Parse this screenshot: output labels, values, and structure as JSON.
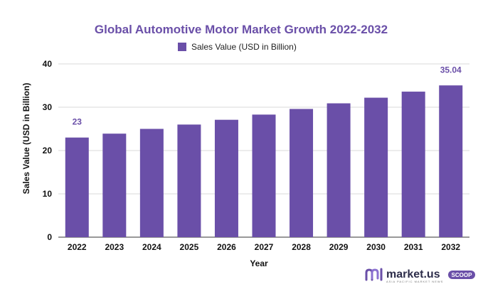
{
  "colors": {
    "bar": "#6a4fa8",
    "title": "#6a4fa8",
    "grid": "#d9d9d9",
    "text": "#111111",
    "scoop_badge": "#6a4fa8"
  },
  "logo": {
    "brand": "market.us",
    "tagline": "ASIA PACIFIC MARKET NEWS",
    "badge": "SCOOP",
    "icon": "market-us-logo-icon"
  },
  "chart_data": {
    "type": "bar",
    "title": "Global Automotive Motor Market Growth 2022-2032",
    "xlabel": "Year",
    "ylabel": "Sales Value (USD in Billion)",
    "legend": {
      "position": "top-center",
      "entries": [
        "Sales Value (USD in Billion)"
      ]
    },
    "grid": true,
    "ylim": [
      0,
      40
    ],
    "yticks": [
      0,
      10,
      20,
      30,
      40
    ],
    "categories": [
      "2022",
      "2023",
      "2024",
      "2025",
      "2026",
      "2027",
      "2028",
      "2029",
      "2030",
      "2031",
      "2032"
    ],
    "series": [
      {
        "name": "Sales Value (USD in Billion)",
        "values": [
          23,
          23.9,
          25.0,
          26.0,
          27.1,
          28.3,
          29.6,
          30.9,
          32.2,
          33.6,
          35.04
        ]
      }
    ],
    "data_labels": [
      {
        "category": "2022",
        "text": "23"
      },
      {
        "category": "2032",
        "text": "35.04"
      }
    ]
  }
}
